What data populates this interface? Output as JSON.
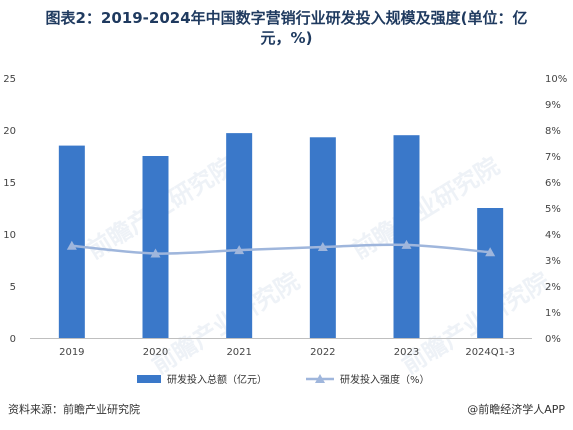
{
  "title_line1": "图表2：2019-2024年中国数字营销行业研发投入规模及强度(单位：亿",
  "title_line2": "元，%)",
  "source": "资料来源：前瞻产业研究院",
  "brand": "@前瞻经济学人APP",
  "watermark": "前瞻产业研究院",
  "chart_data": {
    "type": "bar",
    "categories": [
      "2019",
      "2020",
      "2021",
      "2022",
      "2023",
      "2024Q1-3"
    ],
    "series": [
      {
        "name": "研发投入总额（亿元）",
        "type": "bar",
        "axis": "left",
        "color": "#3a78c9",
        "values": [
          18.5,
          17.5,
          19.7,
          19.3,
          19.5,
          12.5
        ]
      },
      {
        "name": "研发投入强度（%）",
        "type": "line",
        "axis": "right",
        "color": "#9fb6dc",
        "values": [
          3.55,
          3.25,
          3.38,
          3.5,
          3.58,
          3.3
        ]
      }
    ],
    "y_left": {
      "min": 0,
      "max": 25,
      "ticks": [
        "0",
        "5",
        "10",
        "15",
        "20",
        "25"
      ]
    },
    "y_right": {
      "min": 0,
      "max": 10,
      "ticks": [
        "0%",
        "1%",
        "2%",
        "3%",
        "4%",
        "5%",
        "6%",
        "7%",
        "8%",
        "9%",
        "10%"
      ]
    },
    "grid": false,
    "legend": "bottom"
  }
}
